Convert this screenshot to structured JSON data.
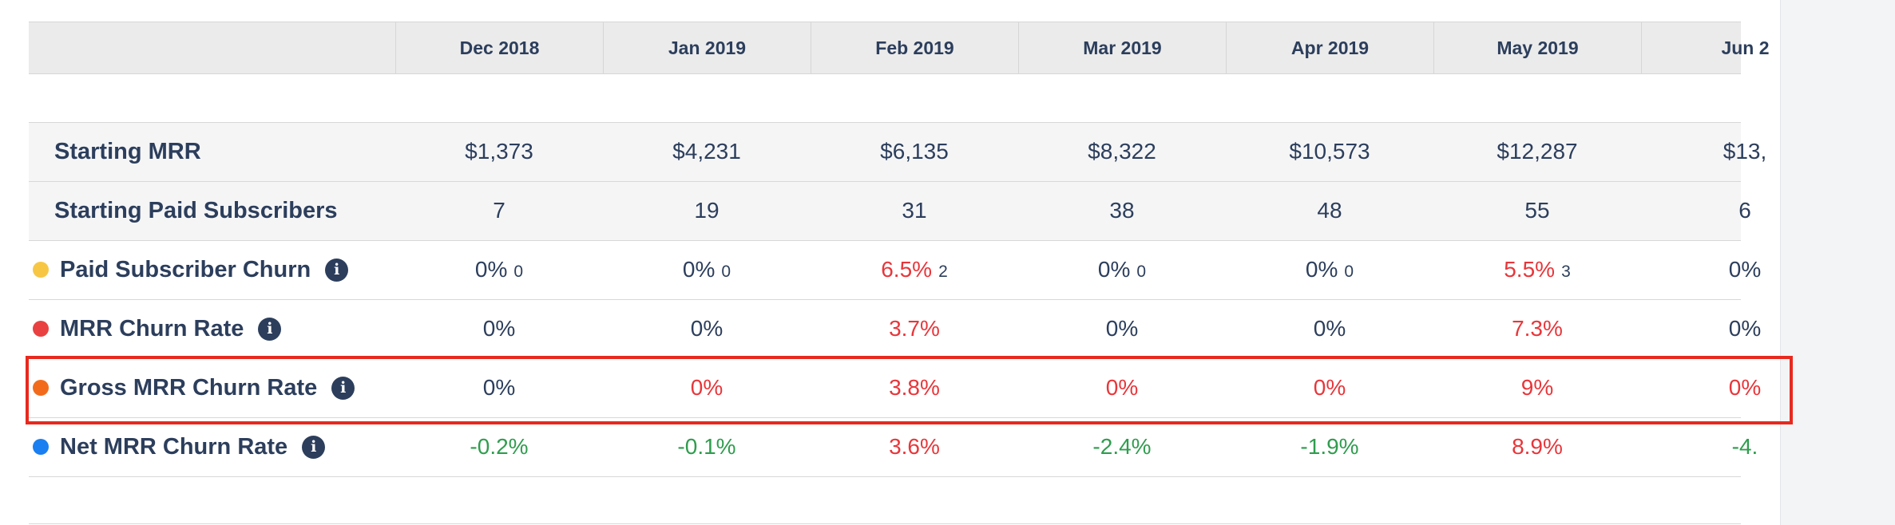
{
  "table": {
    "columns": [
      "Dec 2018",
      "Jan 2019",
      "Feb 2019",
      "Mar 2019",
      "Apr 2019",
      "May 2019",
      "Jun 2"
    ],
    "rows": [
      {
        "label": "Starting MRR",
        "shade": true,
        "cells": [
          {
            "text": "$1,373",
            "color": "#2c3e5c"
          },
          {
            "text": "$4,231",
            "color": "#2c3e5c"
          },
          {
            "text": "$6,135",
            "color": "#2c3e5c"
          },
          {
            "text": "$8,322",
            "color": "#2c3e5c"
          },
          {
            "text": "$10,573",
            "color": "#2c3e5c"
          },
          {
            "text": "$12,287",
            "color": "#2c3e5c"
          },
          {
            "text": "$13,",
            "color": "#2c3e5c"
          }
        ]
      },
      {
        "label": "Starting Paid Subscribers",
        "shade": true,
        "cells": [
          {
            "text": "7",
            "color": "#2c3e5c"
          },
          {
            "text": "19",
            "color": "#2c3e5c"
          },
          {
            "text": "31",
            "color": "#2c3e5c"
          },
          {
            "text": "38",
            "color": "#2c3e5c"
          },
          {
            "text": "48",
            "color": "#2c3e5c"
          },
          {
            "text": "55",
            "color": "#2c3e5c"
          },
          {
            "text": "6",
            "color": "#2c3e5c"
          }
        ]
      },
      {
        "label": "Paid Subscriber Churn",
        "dot": "#f7c744",
        "info": "i",
        "cells": [
          {
            "text": "0%",
            "sub": "0",
            "color": "#2c3e5c"
          },
          {
            "text": "0%",
            "sub": "0",
            "color": "#2c3e5c"
          },
          {
            "text": "6.5%",
            "sub": "2",
            "color": "#e8363a"
          },
          {
            "text": "0%",
            "sub": "0",
            "color": "#2c3e5c"
          },
          {
            "text": "0%",
            "sub": "0",
            "color": "#2c3e5c"
          },
          {
            "text": "5.5%",
            "sub": "3",
            "color": "#e8363a"
          },
          {
            "text": "0%",
            "color": "#2c3e5c"
          }
        ]
      },
      {
        "label": "MRR Churn Rate",
        "dot": "#e94141",
        "info": "i",
        "cells": [
          {
            "text": "0%",
            "color": "#2c3e5c"
          },
          {
            "text": "0%",
            "color": "#2c3e5c"
          },
          {
            "text": "3.7%",
            "color": "#e8363a"
          },
          {
            "text": "0%",
            "color": "#2c3e5c"
          },
          {
            "text": "0%",
            "color": "#2c3e5c"
          },
          {
            "text": "7.3%",
            "color": "#e8363a"
          },
          {
            "text": "0%",
            "color": "#2c3e5c"
          }
        ]
      },
      {
        "label": "Gross MRR Churn Rate",
        "dot": "#f26b1d",
        "info": "i",
        "cells": [
          {
            "text": "0%",
            "color": "#2c3e5c"
          },
          {
            "text": "0%",
            "color": "#e8363a"
          },
          {
            "text": "3.8%",
            "color": "#e8363a"
          },
          {
            "text": "0%",
            "color": "#e8363a"
          },
          {
            "text": "0%",
            "color": "#e8363a"
          },
          {
            "text": "9%",
            "color": "#e8363a"
          },
          {
            "text": "0%",
            "color": "#e8363a"
          }
        ]
      },
      {
        "label": "Net MRR Churn Rate",
        "dot": "#1a7ff0",
        "info": "i",
        "cells": [
          {
            "text": "-0.2%",
            "color": "#2f9d4e"
          },
          {
            "text": "-0.1%",
            "color": "#2f9d4e"
          },
          {
            "text": "3.6%",
            "color": "#e8363a"
          },
          {
            "text": "-2.4%",
            "color": "#2f9d4e"
          },
          {
            "text": "-1.9%",
            "color": "#2f9d4e"
          },
          {
            "text": "8.9%",
            "color": "#e8363a"
          },
          {
            "text": "-4.",
            "color": "#2f9d4e"
          }
        ]
      }
    ]
  }
}
